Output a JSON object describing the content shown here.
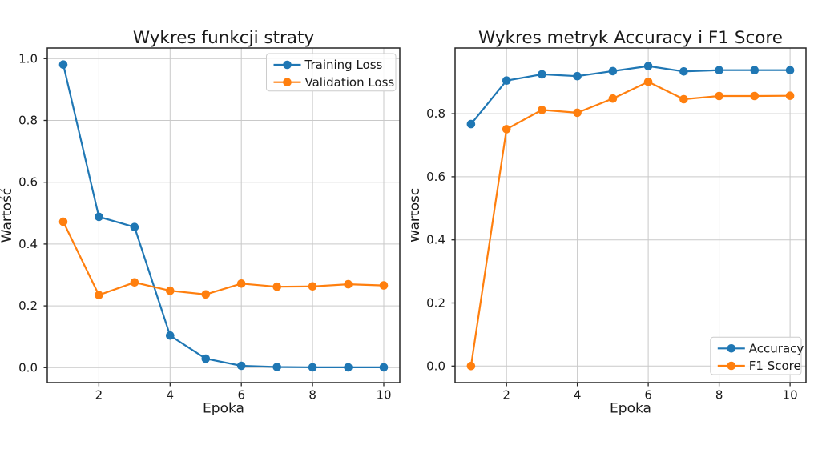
{
  "chart_data": [
    {
      "type": "line",
      "title": "Wykres funkcji straty",
      "xlabel": "Epoka",
      "ylabel": "Wartość",
      "x": [
        1,
        2,
        3,
        4,
        5,
        6,
        7,
        8,
        9,
        10
      ],
      "series": [
        {
          "name": "Training Loss",
          "color": "#1f77b4",
          "values": [
            0.981,
            0.488,
            0.455,
            0.104,
            0.029,
            0.006,
            0.002,
            0.001,
            0.001,
            0.001
          ]
        },
        {
          "name": "Validation Loss",
          "color": "#ff7f0e",
          "values": [
            0.472,
            0.235,
            0.276,
            0.249,
            0.237,
            0.272,
            0.262,
            0.263,
            0.27,
            0.266
          ]
        }
      ],
      "xlim": [
        0.55,
        10.45
      ],
      "ylim": [
        -0.0484,
        1.0345
      ],
      "xticks": [
        2,
        4,
        6,
        8,
        10
      ],
      "yticks": [
        0.0,
        0.2,
        0.4,
        0.6,
        0.8,
        1.0
      ],
      "grid": true,
      "legend_position": "upper-right"
    },
    {
      "type": "line",
      "title": "Wykres metryk Accuracy i F1 Score",
      "xlabel": "Epoka",
      "ylabel": "Wartość",
      "x": [
        1,
        2,
        3,
        4,
        5,
        6,
        7,
        8,
        9,
        10
      ],
      "series": [
        {
          "name": "Accuracy",
          "color": "#1f77b4",
          "values": [
            0.767,
            0.905,
            0.925,
            0.919,
            0.935,
            0.951,
            0.934,
            0.938,
            0.938,
            0.938
          ]
        },
        {
          "name": "F1 Score",
          "color": "#ff7f0e",
          "values": [
            0.0,
            0.751,
            0.812,
            0.803,
            0.848,
            0.901,
            0.846,
            0.856,
            0.856,
            0.857
          ]
        }
      ],
      "xlim": [
        0.55,
        10.45
      ],
      "ylim": [
        -0.0525,
        1.0084
      ],
      "xticks": [
        2,
        4,
        6,
        8,
        10
      ],
      "yticks": [
        0.0,
        0.2,
        0.4,
        0.6,
        0.8
      ],
      "grid": true,
      "legend_position": "lower-right"
    }
  ],
  "style_colors": {
    "background": "#ffffff",
    "grid": "#c9c9c9",
    "spine": "#262626",
    "text": "#1a1a1a",
    "legend_border": "#cccccc"
  }
}
